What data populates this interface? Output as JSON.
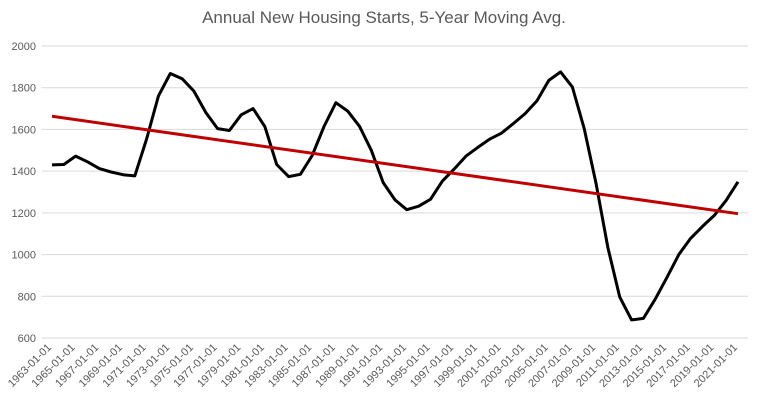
{
  "chart_data": {
    "type": "line",
    "title": "Annual New Housing Starts, 5-Year Moving Avg.",
    "xlabel": "",
    "ylabel": "",
    "ylim": [
      600,
      2000
    ],
    "yticks": [
      600,
      800,
      1000,
      1200,
      1400,
      1600,
      1800,
      2000
    ],
    "grid": true,
    "legend": "none",
    "x": [
      "1963-01-01",
      "1964-01-01",
      "1965-01-01",
      "1966-01-01",
      "1967-01-01",
      "1968-01-01",
      "1969-01-01",
      "1970-01-01",
      "1971-01-01",
      "1972-01-01",
      "1973-01-01",
      "1974-01-01",
      "1975-01-01",
      "1976-01-01",
      "1977-01-01",
      "1978-01-01",
      "1979-01-01",
      "1980-01-01",
      "1981-01-01",
      "1982-01-01",
      "1983-01-01",
      "1984-01-01",
      "1985-01-01",
      "1986-01-01",
      "1987-01-01",
      "1988-01-01",
      "1989-01-01",
      "1990-01-01",
      "1991-01-01",
      "1992-01-01",
      "1993-01-01",
      "1994-01-01",
      "1995-01-01",
      "1996-01-01",
      "1997-01-01",
      "1998-01-01",
      "1999-01-01",
      "2000-01-01",
      "2001-01-01",
      "2002-01-01",
      "2003-01-01",
      "2004-01-01",
      "2005-01-01",
      "2006-01-01",
      "2007-01-01",
      "2008-01-01",
      "2009-01-01",
      "2010-01-01",
      "2011-01-01",
      "2012-01-01",
      "2013-01-01",
      "2014-01-01",
      "2015-01-01",
      "2016-01-01",
      "2017-01-01",
      "2018-01-01",
      "2019-01-01",
      "2020-01-01",
      "2021-01-01"
    ],
    "xtick_labels": [
      "1963-01-01",
      "1965-01-01",
      "1967-01-01",
      "1969-01-01",
      "1971-01-01",
      "1973-01-01",
      "1975-01-01",
      "1977-01-01",
      "1979-01-01",
      "1981-01-01",
      "1983-01-01",
      "1985-01-01",
      "1987-01-01",
      "1989-01-01",
      "1991-01-01",
      "1993-01-01",
      "1995-01-01",
      "1997-01-01",
      "1999-01-01",
      "2001-01-01",
      "2003-01-01",
      "2005-01-01",
      "2007-01-01",
      "2009-01-01",
      "2011-01-01",
      "2013-01-01",
      "2015-01-01",
      "2017-01-01",
      "2019-01-01",
      "2021-01-01"
    ],
    "series": [
      {
        "values": [
          1430,
          1432,
          1472,
          1445,
          1412,
          1396,
          1383,
          1377,
          1554,
          1760,
          1868,
          1843,
          1784,
          1681,
          1604,
          1595,
          1670,
          1700,
          1613,
          1432,
          1374,
          1385,
          1475,
          1614,
          1728,
          1688,
          1615,
          1500,
          1345,
          1262,
          1215,
          1232,
          1265,
          1352,
          1410,
          1472,
          1514,
          1553,
          1582,
          1628,
          1676,
          1737,
          1835,
          1876,
          1803,
          1604,
          1340,
          1033,
          797,
          687,
          694,
          786,
          891,
          1001,
          1078,
          1135,
          1188,
          1260,
          1349
        ],
        "color": "#000000"
      },
      {
        "values": [
          1663,
          1196
        ],
        "x": [
          "1963-01-01",
          "2021-01-01"
        ],
        "color": "#c00000"
      }
    ]
  }
}
